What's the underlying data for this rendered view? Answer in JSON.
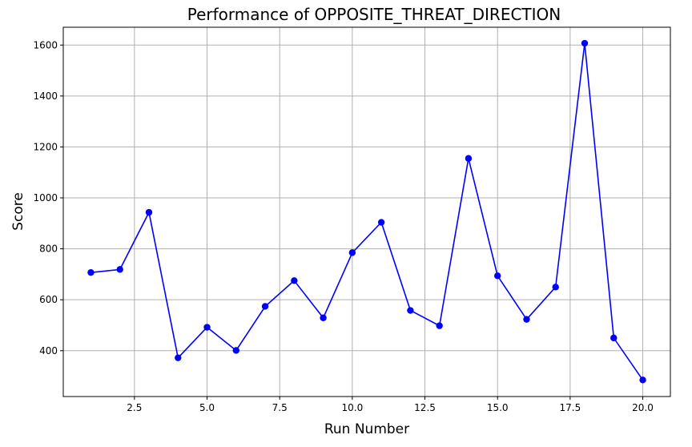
{
  "chart_data": {
    "type": "line",
    "title": "Performance of OPPOSITE_THREAT_DIRECTION",
    "xlabel": "Run Number",
    "ylabel": "Score",
    "xlim": [
      0.05,
      20.95
    ],
    "ylim": [
      220,
      1670
    ],
    "xticks": [
      2.5,
      5.0,
      7.5,
      10.0,
      12.5,
      15.0,
      17.5,
      20.0
    ],
    "xtick_labels": [
      "2.5",
      "5.0",
      "7.5",
      "10.0",
      "12.5",
      "15.0",
      "17.5",
      "20.0"
    ],
    "yticks": [
      400,
      600,
      800,
      1000,
      1200,
      1400,
      1600
    ],
    "ytick_labels": [
      "400",
      "600",
      "800",
      "1000",
      "1200",
      "1400",
      "1600"
    ],
    "grid": true,
    "series": [
      {
        "color": "#0000ff",
        "marker": "circle",
        "x": [
          1,
          2,
          3,
          4,
          5,
          6,
          7,
          8,
          9,
          10,
          11,
          12,
          13,
          14,
          15,
          16,
          17,
          18,
          19,
          20
        ],
        "y": [
          707,
          719,
          943,
          372,
          492,
          401,
          574,
          675,
          529,
          785,
          904,
          558,
          498,
          1155,
          694,
          523,
          650,
          1607,
          450,
          285
        ]
      }
    ]
  }
}
